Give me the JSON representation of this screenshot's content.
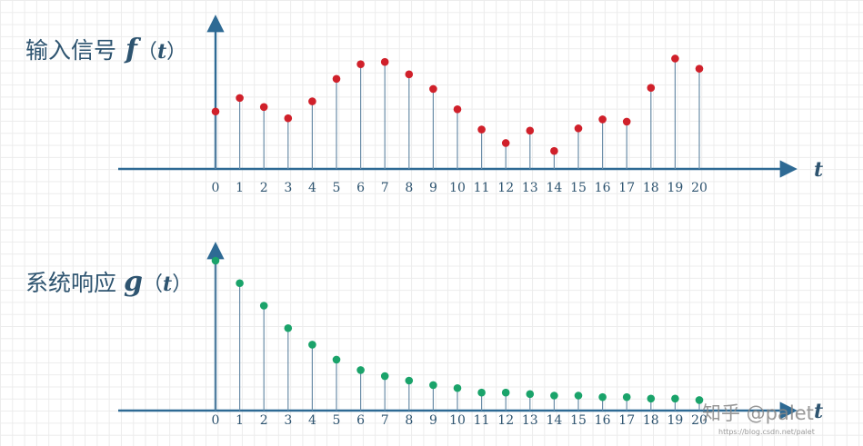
{
  "chart_data": [
    {
      "type": "stem",
      "title_text": "输入信号",
      "title_symbol": "f",
      "title_open": "（",
      "title_arg": "t",
      "title_close": "）",
      "xlabel": "t",
      "categories": [
        0,
        1,
        2,
        3,
        4,
        5,
        6,
        7,
        8,
        9,
        10,
        11,
        12,
        13,
        14,
        15,
        16,
        17,
        18,
        19,
        20
      ],
      "tick_labels": [
        "0",
        "1",
        "2",
        "3",
        "4",
        "5",
        "6",
        "7",
        "8",
        "9",
        "10",
        "11",
        "12",
        "13",
        "14",
        "15",
        "16",
        "17",
        "18",
        "19",
        "20"
      ],
      "values": [
        0.51,
        0.63,
        0.55,
        0.45,
        0.6,
        0.8,
        0.93,
        0.95,
        0.84,
        0.71,
        0.53,
        0.35,
        0.23,
        0.34,
        0.16,
        0.36,
        0.44,
        0.42,
        0.72,
        0.98,
        0.89
      ],
      "ylim": [
        0,
        1
      ],
      "marker_color": "#d0202a",
      "stem_color": "#6b8da8"
    },
    {
      "type": "stem",
      "title_text": "系统响应",
      "title_symbol": "g",
      "title_open": "（",
      "title_arg": "t",
      "title_close": "）",
      "xlabel": "t",
      "categories": [
        0,
        1,
        2,
        3,
        4,
        5,
        6,
        7,
        8,
        9,
        10,
        11,
        12,
        13,
        14,
        15,
        16,
        17,
        18,
        19,
        20
      ],
      "tick_labels": [
        "0",
        "1",
        "2",
        "3",
        "4",
        "5",
        "6",
        "7",
        "8",
        "9",
        "10",
        "11",
        "12",
        "13",
        "14",
        "15",
        "16",
        "17",
        "18",
        "19",
        "20"
      ],
      "values": [
        1.0,
        0.85,
        0.7,
        0.55,
        0.44,
        0.34,
        0.27,
        0.23,
        0.2,
        0.17,
        0.15,
        0.12,
        0.12,
        0.11,
        0.1,
        0.1,
        0.09,
        0.09,
        0.08,
        0.08,
        0.07
      ],
      "ylim": [
        0,
        1
      ],
      "marker_color": "#1aa36a",
      "stem_color": "#6b8da8"
    }
  ],
  "watermark": {
    "text": "知乎 @palet",
    "url": "https://blog.csdn.net/palet"
  },
  "colors": {
    "axis": "#2e6a94",
    "text": "#2e5470",
    "grid": "#ececec"
  }
}
